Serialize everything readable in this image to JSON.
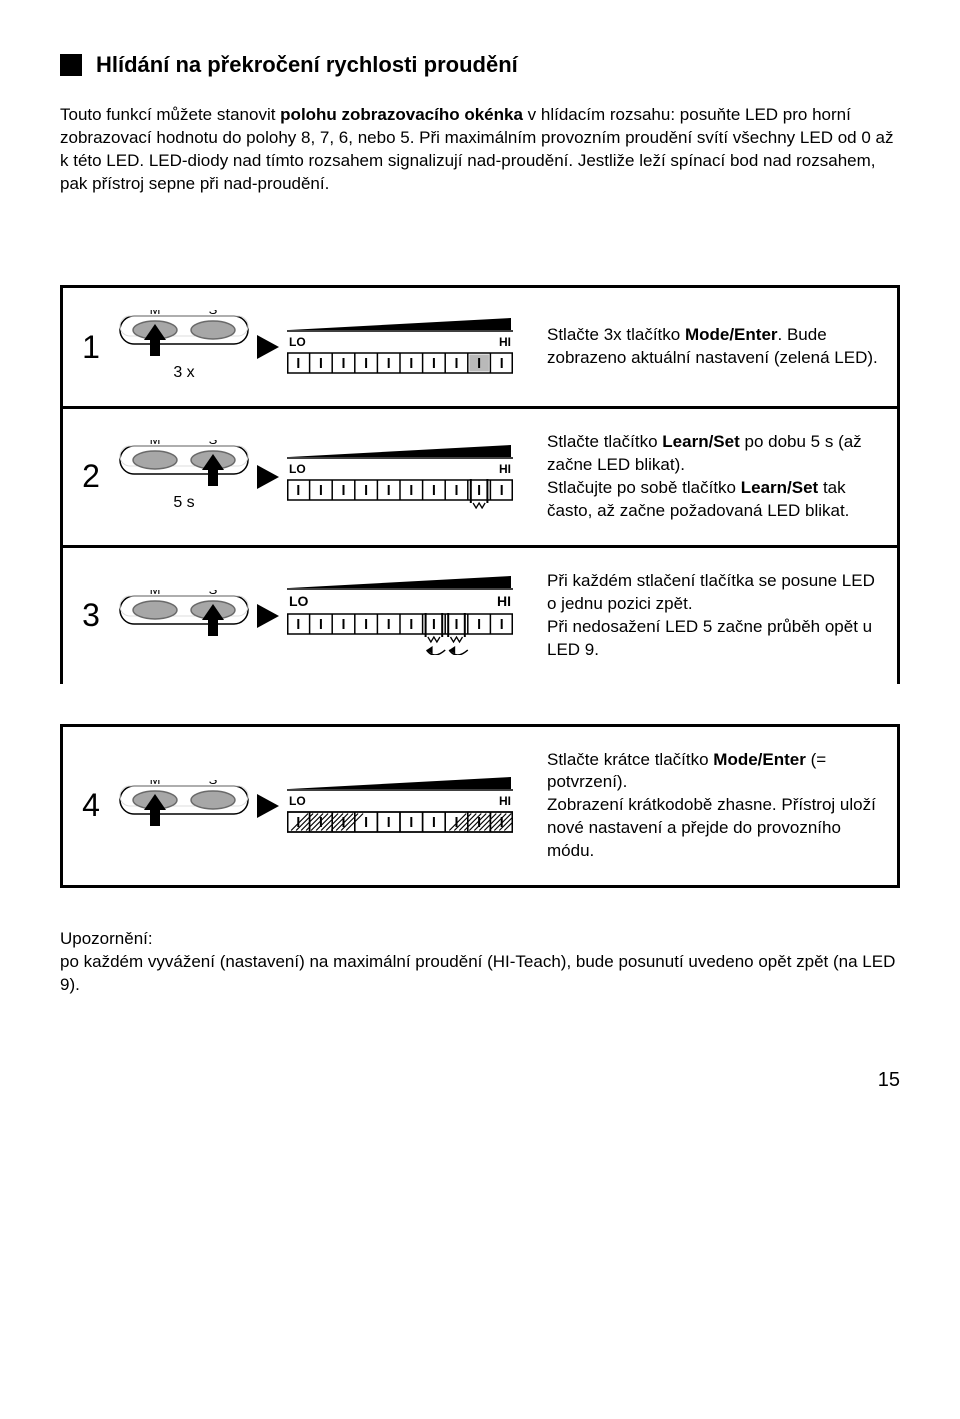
{
  "title": "Hlídání na překročení rychlosti proudění",
  "intro_html": "Touto funkcí můžete stanovit <b>polohu zobrazovacího okénka</b> v hlídacím rozsahu: posuňte LED pro horní zobrazovací hodnotu do polohy 8, 7, 6, nebo 5. Při maximálním provozním proudění svítí všechny LED od 0 až k této LED. LED-diody nad tímto rozsahem signalizují nad-proudění. Jestliže leží spínací bod nad rozsahem, pak přístroj sepne při nad-proudění.",
  "rows": [
    {
      "num": "1",
      "btn_under": "3 x",
      "btn_arrow": "M",
      "lo": "LO",
      "hi": "HI",
      "desc_html": "Stlačte 3x tlačítko <b>Mode/Enter</b>. Bude zobrazeno aktuální nastavení (zelená LED).",
      "diagram": "plain_highlight8",
      "lohi_bold": false
    },
    {
      "num": "2",
      "btn_under": "5 s",
      "btn_arrow": "S",
      "lo": "LO",
      "hi": "HI",
      "desc_html": "Stlačte tlačítko <b>Learn/Set</b> po dobu 5 s (až začne LED blikat).<br>Stlačujte po sobě tlačítko <b>Learn/Set</b> tak často, až začne požadovaná LED blikat.",
      "diagram": "blink_one",
      "lohi_bold": false
    },
    {
      "num": "3",
      "btn_under": "",
      "btn_arrow": "S",
      "lo": "LO",
      "hi": "HI",
      "desc_html": "Při každém stlačení tlačítka se posune LED o jednu pozici zpět.<br>Při nedosažení LED 5 začne průběh opět u LED 9.",
      "diagram": "move_back",
      "lohi_bold": true
    },
    {
      "num": "4",
      "btn_under": "",
      "btn_arrow": "M",
      "lo": "LO",
      "hi": "HI",
      "desc_html": "Stlačte krátce tlačítko <b>Mode/Enter</b> (= potvrzení).<br>Zobrazení krátkodobě zhasne. Přístroj uloží nové nastavení a přejde do provozního módu.",
      "diagram": "hatched",
      "lohi_bold": false
    }
  ],
  "note": "Upozornění:\npo každém vyvážení (nastavení) na maximální proudění (HI-Teach), bude posunutí uvedeno opět zpět (na LED 9).",
  "page_num": "15",
  "colors": {
    "text": "#000000",
    "bg": "#ffffff",
    "border": "#000000",
    "highlight": "#b9b9b9",
    "button_fill": "#a7a7a7",
    "button_stroke": "#6a6a6a"
  }
}
